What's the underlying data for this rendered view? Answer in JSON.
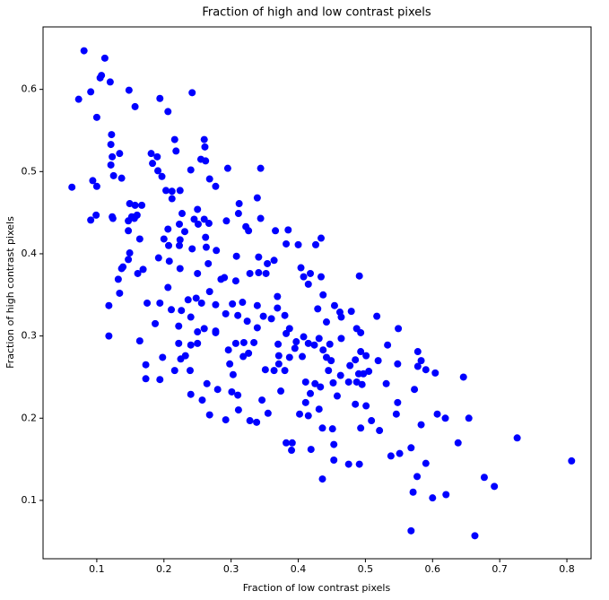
{
  "chart_data": {
    "type": "scatter",
    "title": "Fraction of high and low contrast pixels",
    "xlabel": "Fraction of low contrast pixels",
    "ylabel": "Fraction of high contrast pixels",
    "color": "#0000ff",
    "xlim": [
      0.02,
      0.836
    ],
    "ylim": [
      0.029,
      0.676
    ],
    "xticks": [
      0.1,
      0.2,
      0.3,
      0.4,
      0.5,
      0.6,
      0.7,
      0.8
    ],
    "yticks": [
      0.1,
      0.2,
      0.3,
      0.4,
      0.5,
      0.6
    ],
    "x": [
      0.081,
      0.112,
      0.073,
      0.091,
      0.105,
      0.107,
      0.12,
      0.1,
      0.148,
      0.157,
      0.194,
      0.206,
      0.242,
      0.063,
      0.094,
      0.1,
      0.122,
      0.121,
      0.123,
      0.134,
      0.121,
      0.125,
      0.137,
      0.091,
      0.099,
      0.123,
      0.124,
      0.147,
      0.152,
      0.156,
      0.16,
      0.149,
      0.157,
      0.167,
      0.183,
      0.181,
      0.19,
      0.191,
      0.197,
      0.203,
      0.212,
      0.212,
      0.224,
      0.216,
      0.218,
      0.24,
      0.255,
      0.262,
      0.26,
      0.261,
      0.268,
      0.277,
      0.295,
      0.344,
      0.339,
      0.312,
      0.311,
      0.25,
      0.26,
      0.293,
      0.344,
      0.322,
      0.326,
      0.366,
      0.385,
      0.382,
      0.434,
      0.426,
      0.4,
      0.2,
      0.207,
      0.223,
      0.242,
      0.262,
      0.263,
      0.278,
      0.308,
      0.341,
      0.364,
      0.354,
      0.328,
      0.404,
      0.418,
      0.408,
      0.415,
      0.434,
      0.437,
      0.429,
      0.442,
      0.454,
      0.462,
      0.464,
      0.491,
      0.479,
      0.487,
      0.493,
      0.517,
      0.533,
      0.548,
      0.549,
      0.519,
      0.501,
      0.505,
      0.531,
      0.578,
      0.583,
      0.578,
      0.59,
      0.604,
      0.646,
      0.573,
      0.548,
      0.546,
      0.583,
      0.607,
      0.619,
      0.654,
      0.638,
      0.726,
      0.807,
      0.59,
      0.577,
      0.571,
      0.6,
      0.62,
      0.677,
      0.692,
      0.568,
      0.663,
      0.568,
      0.538,
      0.551,
      0.521,
      0.493,
      0.509,
      0.491,
      0.475,
      0.453,
      0.453,
      0.436,
      0.451,
      0.436,
      0.419,
      0.391,
      0.382,
      0.39,
      0.374,
      0.411,
      0.418,
      0.425,
      0.431,
      0.402,
      0.415,
      0.411,
      0.406,
      0.38,
      0.351,
      0.346,
      0.355,
      0.338,
      0.328,
      0.311,
      0.292,
      0.28,
      0.264,
      0.268,
      0.257,
      0.24,
      0.239,
      0.225,
      0.216,
      0.194,
      0.173,
      0.173,
      0.198,
      0.232,
      0.298,
      0.303,
      0.301,
      0.31,
      0.318,
      0.319,
      0.334,
      0.339,
      0.324,
      0.31,
      0.292,
      0.277,
      0.26,
      0.25,
      0.24,
      0.226,
      0.236,
      0.248,
      0.268,
      0.277,
      0.256,
      0.29,
      0.307,
      0.285,
      0.266,
      0.25,
      0.224,
      0.208,
      0.192,
      0.175,
      0.187,
      0.222,
      0.222,
      0.24,
      0.25,
      0.277,
      0.307,
      0.296,
      0.326,
      0.37,
      0.371,
      0.371,
      0.364,
      0.387,
      0.395,
      0.415,
      0.424,
      0.437,
      0.442,
      0.449,
      0.445,
      0.452,
      0.433,
      0.458,
      0.475,
      0.487,
      0.495,
      0.497,
      0.49,
      0.485,
      0.501,
      0.463,
      0.477,
      0.485,
      0.493,
      0.464,
      0.447,
      0.431,
      0.408,
      0.397,
      0.382,
      0.387,
      0.38,
      0.369,
      0.369,
      0.36,
      0.348,
      0.339,
      0.317,
      0.302,
      0.206,
      0.211,
      0.194,
      0.164,
      0.118,
      0.118,
      0.134,
      0.132,
      0.137,
      0.139,
      0.149,
      0.147,
      0.161,
      0.169,
      0.164,
      0.147,
      0.223,
      0.231,
      0.245,
      0.251,
      0.267,
      0.227,
      0.224,
      0.206,
      0.341,
      0.352
    ],
    "y": [
      0.647,
      0.638,
      0.588,
      0.597,
      0.614,
      0.617,
      0.609,
      0.566,
      0.599,
      0.579,
      0.589,
      0.573,
      0.596,
      0.481,
      0.489,
      0.482,
      0.545,
      0.533,
      0.518,
      0.522,
      0.508,
      0.495,
      0.492,
      0.441,
      0.447,
      0.445,
      0.443,
      0.44,
      0.445,
      0.443,
      0.447,
      0.461,
      0.459,
      0.459,
      0.51,
      0.522,
      0.518,
      0.501,
      0.494,
      0.477,
      0.476,
      0.467,
      0.477,
      0.539,
      0.525,
      0.502,
      0.515,
      0.513,
      0.539,
      0.53,
      0.491,
      0.482,
      0.504,
      0.504,
      0.468,
      0.461,
      0.449,
      0.454,
      0.442,
      0.44,
      0.443,
      0.433,
      0.428,
      0.428,
      0.429,
      0.412,
      0.419,
      0.411,
      0.411,
      0.418,
      0.41,
      0.41,
      0.406,
      0.42,
      0.408,
      0.404,
      0.397,
      0.396,
      0.392,
      0.388,
      0.376,
      0.383,
      0.376,
      0.372,
      0.363,
      0.372,
      0.35,
      0.333,
      0.317,
      0.337,
      0.329,
      0.323,
      0.373,
      0.33,
      0.309,
      0.304,
      0.324,
      0.289,
      0.266,
      0.309,
      0.27,
      0.276,
      0.257,
      0.242,
      0.281,
      0.27,
      0.263,
      0.259,
      0.255,
      0.25,
      0.235,
      0.219,
      0.205,
      0.192,
      0.205,
      0.2,
      0.2,
      0.17,
      0.176,
      0.148,
      0.145,
      0.129,
      0.11,
      0.103,
      0.107,
      0.128,
      0.117,
      0.063,
      0.057,
      0.164,
      0.154,
      0.157,
      0.185,
      0.188,
      0.197,
      0.144,
      0.144,
      0.149,
      0.168,
      0.126,
      0.187,
      0.188,
      0.162,
      0.17,
      0.17,
      0.161,
      0.233,
      0.244,
      0.23,
      0.242,
      0.211,
      0.205,
      0.203,
      0.219,
      0.275,
      0.258,
      0.259,
      0.222,
      0.206,
      0.195,
      0.197,
      0.21,
      0.198,
      0.235,
      0.242,
      0.204,
      0.222,
      0.229,
      0.258,
      0.272,
      0.258,
      0.247,
      0.248,
      0.265,
      0.274,
      0.276,
      0.266,
      0.253,
      0.232,
      0.228,
      0.275,
      0.292,
      0.292,
      0.31,
      0.318,
      0.325,
      0.327,
      0.304,
      0.309,
      0.305,
      0.323,
      0.331,
      0.344,
      0.346,
      0.354,
      0.338,
      0.34,
      0.371,
      0.367,
      0.369,
      0.388,
      0.376,
      0.382,
      0.391,
      0.395,
      0.34,
      0.315,
      0.312,
      0.291,
      0.289,
      0.291,
      0.306,
      0.291,
      0.283,
      0.279,
      0.29,
      0.276,
      0.266,
      0.258,
      0.274,
      0.285,
      0.291,
      0.289,
      0.283,
      0.274,
      0.27,
      0.258,
      0.243,
      0.238,
      0.227,
      0.244,
      0.244,
      0.241,
      0.254,
      0.254,
      0.217,
      0.215,
      0.252,
      0.264,
      0.271,
      0.281,
      0.297,
      0.29,
      0.297,
      0.299,
      0.293,
      0.303,
      0.309,
      0.325,
      0.334,
      0.348,
      0.321,
      0.324,
      0.337,
      0.341,
      0.339,
      0.359,
      0.332,
      0.34,
      0.294,
      0.3,
      0.337,
      0.352,
      0.369,
      0.382,
      0.384,
      0.401,
      0.393,
      0.376,
      0.381,
      0.418,
      0.428,
      0.436,
      0.427,
      0.442,
      0.436,
      0.437,
      0.449,
      0.417,
      0.43,
      0.377,
      0.376
    ]
  }
}
